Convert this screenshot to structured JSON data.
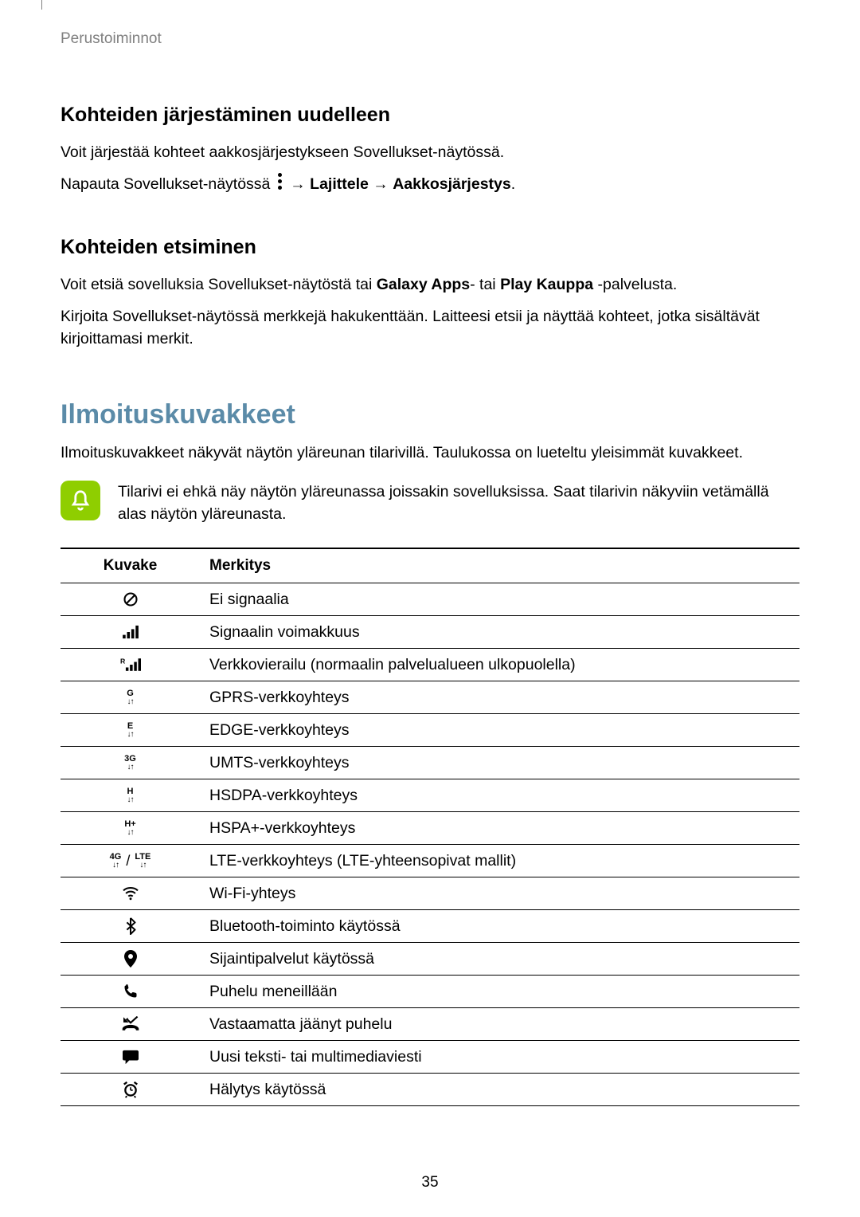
{
  "breadcrumb": "Perustoiminnot",
  "section1": {
    "heading": "Kohteiden järjestäminen uudelleen",
    "p1": "Voit järjestää kohteet aakkosjärjestykseen Sovellukset-näytössä.",
    "p2_pre": "Napauta Sovellukset-näytössä ",
    "p2_arrow1": " → ",
    "p2_b1": "Lajittele",
    "p2_arrow2": " → ",
    "p2_b2": "Aakkosjärjestys",
    "p2_end": "."
  },
  "section2": {
    "heading": "Kohteiden etsiminen",
    "p1_a": "Voit etsiä sovelluksia Sovellukset-näytöstä tai ",
    "p1_b1": "Galaxy Apps",
    "p1_mid": "- tai ",
    "p1_b2": "Play Kauppa",
    "p1_end": " -palvelusta.",
    "p2": "Kirjoita Sovellukset-näytössä merkkejä hakukenttään. Laitteesi etsii ja näyttää kohteet, jotka sisältävät kirjoittamasi merkit."
  },
  "section3": {
    "heading": "Ilmoituskuvakkeet",
    "intro": "Ilmoituskuvakkeet näkyvät näytön yläreunan tilarivillä. Taulukossa on lueteltu yleisimmät kuvakkeet.",
    "note": "Tilarivi ei ehkä näy näytön yläreunassa joissakin sovelluksissa. Saat tilarivin näkyviin vetämällä alas näytön yläreunasta."
  },
  "table": {
    "col_icon": "Kuvake",
    "col_meaning": "Merkitys",
    "rows": [
      {
        "icon": "no-signal",
        "label": "Ei signaalia"
      },
      {
        "icon": "signal",
        "label": "Signaalin voimakkuus"
      },
      {
        "icon": "roaming",
        "label": "Verkkovierailu (normaalin palvelualueen ulkopuolella)"
      },
      {
        "icon": "gprs",
        "label": "GPRS-verkkoyhteys"
      },
      {
        "icon": "edge",
        "label": "EDGE-verkkoyhteys"
      },
      {
        "icon": "umts",
        "label": "UMTS-verkkoyhteys"
      },
      {
        "icon": "hsdpa",
        "label": "HSDPA-verkkoyhteys"
      },
      {
        "icon": "hspap",
        "label": "HSPA+-verkkoyhteys"
      },
      {
        "icon": "lte",
        "label": "LTE-verkkoyhteys (LTE-yhteensopivat mallit)"
      },
      {
        "icon": "wifi",
        "label": "Wi-Fi-yhteys"
      },
      {
        "icon": "bluetooth",
        "label": "Bluetooth-toiminto käytössä"
      },
      {
        "icon": "location",
        "label": "Sijaintipalvelut käytössä"
      },
      {
        "icon": "call",
        "label": "Puhelu meneillään"
      },
      {
        "icon": "missed",
        "label": "Vastaamatta jäänyt puhelu"
      },
      {
        "icon": "message",
        "label": "Uusi teksti- tai multimediaviesti"
      },
      {
        "icon": "alarm",
        "label": "Hälytys käytössä"
      }
    ]
  },
  "page_number": "35",
  "colors": {
    "heading_accent": "#5b8ba8",
    "note_bg": "#8fce00",
    "text_muted": "#808080",
    "border": "#000000"
  }
}
